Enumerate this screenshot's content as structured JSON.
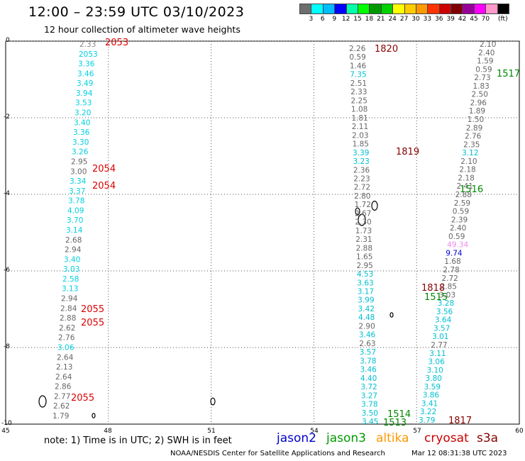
{
  "header": {
    "title": "12:00 – 23:59 UTC 03/10/2023",
    "subtitle": "12 hour collection of altimeter wave heights"
  },
  "colorbar": {
    "colors": [
      "#6e6e6e",
      "#00ffff",
      "#00bbff",
      "#0000ff",
      "#00ffaa",
      "#00ff00",
      "#009900",
      "#00d000",
      "#ffff00",
      "#ffcc00",
      "#ff9900",
      "#ff3300",
      "#cc0000",
      "#800000",
      "#990099",
      "#ff00ff",
      "#ff99cc",
      "#000000"
    ],
    "labels": [
      "3",
      "6",
      "9",
      "12",
      "15",
      "18",
      "21",
      "24",
      "27",
      "30",
      "33",
      "36",
      "39",
      "42",
      "45",
      "70",
      "(ft)"
    ]
  },
  "axes": {
    "lat_labels": [
      "0",
      "-2",
      "-4",
      "-6",
      "-8",
      "-10"
    ],
    "lon_labels": [
      "45",
      "48",
      "51",
      "54",
      "57",
      "60"
    ]
  },
  "tracks": [
    {
      "name": "track-west-top",
      "color_default": "#00d0e0",
      "points": [
        [
          "2.33",
          "#888"
        ],
        [
          "2053",
          ""
        ],
        [
          "3.36",
          ""
        ],
        [
          "3.46",
          ""
        ],
        [
          "3.49",
          ""
        ],
        [
          "3.94",
          ""
        ],
        [
          "3.53",
          ""
        ],
        [
          "3.20",
          ""
        ],
        [
          "3.40",
          ""
        ],
        [
          "3.36",
          ""
        ],
        [
          "3.30",
          ""
        ],
        [
          "3.26",
          ""
        ],
        [
          "2.95",
          "#666"
        ],
        [
          "3.00",
          "#666"
        ],
        [
          "3.34",
          ""
        ],
        [
          "3.37",
          ""
        ],
        [
          "3.78",
          ""
        ],
        [
          "4.09",
          ""
        ],
        [
          "3.70",
          ""
        ],
        [
          "3.14",
          ""
        ],
        [
          "2.68",
          "#666"
        ],
        [
          "2.94",
          "#666"
        ],
        [
          "3.40",
          ""
        ],
        [
          "3.03",
          ""
        ],
        [
          "2.58",
          ""
        ],
        [
          "3.13",
          ""
        ],
        [
          "2.94",
          "#666"
        ],
        [
          "2.84",
          "#666"
        ],
        [
          "2.88",
          "#666"
        ],
        [
          "2.62",
          "#666"
        ],
        [
          "2.76",
          "#666"
        ],
        [
          "3.06",
          ""
        ],
        [
          "2.64",
          "#666"
        ],
        [
          "2.13",
          "#666"
        ],
        [
          "2.64",
          "#666"
        ],
        [
          "2.86",
          "#666"
        ],
        [
          "2.77",
          "#666"
        ],
        [
          "2.62",
          "#666"
        ],
        [
          "1.79",
          "#666"
        ]
      ]
    },
    {
      "name": "track-center",
      "color_default": "#666",
      "points": [
        [
          "2.26",
          ""
        ],
        [
          "0.59",
          ""
        ],
        [
          "1.46",
          ""
        ],
        [
          "7.35",
          "#00c0d0"
        ],
        [
          "2.51",
          ""
        ],
        [
          "2.33",
          ""
        ],
        [
          "2.25",
          ""
        ],
        [
          "1.08",
          ""
        ],
        [
          "1.81",
          ""
        ],
        [
          "2.11",
          ""
        ],
        [
          "2.03",
          ""
        ],
        [
          "1.85",
          ""
        ],
        [
          "3.39",
          "#00c0d0"
        ],
        [
          "3.23",
          "#00c0d0"
        ],
        [
          "2.36",
          ""
        ],
        [
          "2.23",
          ""
        ],
        [
          "2.72",
          ""
        ],
        [
          "2.80",
          ""
        ],
        [
          "1.72",
          ""
        ],
        [
          "2.67",
          ""
        ],
        [
          "2.30",
          ""
        ],
        [
          "1.73",
          ""
        ],
        [
          "2.31",
          ""
        ],
        [
          "2.88",
          ""
        ],
        [
          "1.65",
          ""
        ],
        [
          "2.95",
          ""
        ],
        [
          "4.53",
          "#00c0d0"
        ],
        [
          "3.63",
          "#00c0d0"
        ],
        [
          "3.17",
          "#00c0d0"
        ],
        [
          "3.99",
          "#00c0d0"
        ],
        [
          "3.42",
          "#00c0d0"
        ],
        [
          "4.48",
          "#00c0d0"
        ],
        [
          "2.90",
          ""
        ],
        [
          "3.46",
          "#00c0d0"
        ],
        [
          "2.63",
          ""
        ],
        [
          "3.57",
          "#00c0d0"
        ],
        [
          "3.78",
          "#00c0d0"
        ],
        [
          "3.46",
          "#00c0d0"
        ],
        [
          "4.40",
          "#00c0d0"
        ],
        [
          "3.72",
          "#00c0d0"
        ],
        [
          "3.27",
          "#00c0d0"
        ],
        [
          "3.78",
          "#00c0d0"
        ],
        [
          "3.50",
          "#00c0d0"
        ],
        [
          "3.45",
          "#00c0d0"
        ]
      ]
    },
    {
      "name": "track-east",
      "color_default": "#666",
      "points": [
        [
          "2.10",
          ""
        ],
        [
          "2.40",
          ""
        ],
        [
          "1.59",
          ""
        ],
        [
          "0.59",
          ""
        ],
        [
          "2.73",
          ""
        ],
        [
          "1.83",
          ""
        ],
        [
          "2.50",
          ""
        ],
        [
          "2.96",
          ""
        ],
        [
          "1.89",
          ""
        ],
        [
          "1.50",
          ""
        ],
        [
          "2.89",
          ""
        ],
        [
          "2.76",
          ""
        ],
        [
          "2.35",
          ""
        ],
        [
          "3.12",
          "#00c0d0"
        ],
        [
          "2.10",
          ""
        ],
        [
          "2.18",
          ""
        ],
        [
          "2.18",
          ""
        ],
        [
          "2.41",
          ""
        ],
        [
          "2.88",
          ""
        ],
        [
          "2.59",
          ""
        ],
        [
          "0.59",
          ""
        ],
        [
          "2.39",
          ""
        ],
        [
          "2.40",
          ""
        ],
        [
          "0.59",
          ""
        ],
        [
          "49.34",
          "#ee88ee"
        ],
        [
          "9.74",
          "#0000cc"
        ],
        [
          "1.68",
          ""
        ],
        [
          "2.78",
          ""
        ],
        [
          "2.72",
          ""
        ],
        [
          "2.85",
          ""
        ],
        [
          "3.03",
          ""
        ],
        [
          "3.28",
          "#00c0d0"
        ],
        [
          "3.56",
          "#00c0d0"
        ],
        [
          "3.64",
          "#00c0d0"
        ],
        [
          "3.57",
          "#00c0d0"
        ],
        [
          "3.01",
          "#00c0d0"
        ],
        [
          "2.77",
          ""
        ],
        [
          "3.11",
          "#00c0d0"
        ],
        [
          "3.06",
          "#00c0d0"
        ],
        [
          "3.10",
          "#00c0d0"
        ],
        [
          "3.80",
          "#00c0d0"
        ],
        [
          "3.59",
          "#00c0d0"
        ],
        [
          "3.86",
          "#00c0d0"
        ],
        [
          "3.41",
          "#00c0d0"
        ],
        [
          "3.22",
          "#00c0d0"
        ],
        [
          "3.79",
          "#00c0d0"
        ]
      ]
    }
  ],
  "pass_labels": [
    {
      "text": "2053",
      "color": "#dd0000"
    },
    {
      "text": "2054",
      "color": "#dd0000"
    },
    {
      "text": "2054",
      "color": "#dd0000"
    },
    {
      "text": "2055",
      "color": "#dd0000"
    },
    {
      "text": "2055",
      "color": "#dd0000"
    },
    {
      "text": "2055",
      "color": "#dd0000"
    },
    {
      "text": "1820",
      "color": "#880000"
    },
    {
      "text": "1819",
      "color": "#880000"
    },
    {
      "text": "1818",
      "color": "#880000"
    },
    {
      "text": "1817",
      "color": "#880000"
    },
    {
      "text": "1517",
      "color": "#008800"
    },
    {
      "text": "1516",
      "color": "#008800"
    },
    {
      "text": "1515",
      "color": "#008800"
    },
    {
      "text": "1514",
      "color": "#008800"
    },
    {
      "text": "1513",
      "color": "#008800"
    }
  ],
  "legend": {
    "note": "note: 1) Time is in UTC; 2) SWH is in feet",
    "satellites": [
      {
        "name": "jason2",
        "color": "#0000cc"
      },
      {
        "name": "jason3",
        "color": "#009900"
      },
      {
        "name": "altika",
        "color": "#ff9900"
      },
      {
        "name": "cryosat",
        "color": "#cc0000"
      },
      {
        "name": "s3a",
        "color": "#880000"
      }
    ],
    "credit": "NOAA/NESDIS Center for Satellite Applications and Research",
    "timestamp": "Mar 12 08:31:38 UTC 2023"
  }
}
